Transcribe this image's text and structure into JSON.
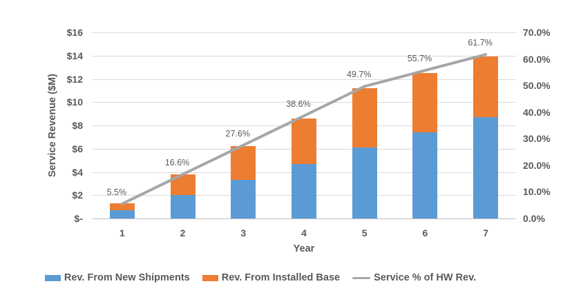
{
  "chart_data": {
    "type": "bar",
    "subtype": "stacked-bar-with-line",
    "title": "",
    "xlabel": "Year",
    "ylabel": "Service Revenue ($M)",
    "categories": [
      "1",
      "2",
      "3",
      "4",
      "5",
      "6",
      "7"
    ],
    "series": [
      {
        "name": "Rev. From New Shipments",
        "kind": "bar",
        "axis": "left",
        "color": "#5B9BD5",
        "values": [
          0.7,
          2.0,
          3.3,
          4.7,
          6.1,
          7.4,
          8.7
        ]
      },
      {
        "name": "Rev. From Installed Base",
        "kind": "bar",
        "axis": "left",
        "color": "#ED7D31",
        "values": [
          0.6,
          1.8,
          2.9,
          3.9,
          5.1,
          5.1,
          5.2
        ]
      },
      {
        "name": "Service % of HW Rev.",
        "kind": "line",
        "axis": "right",
        "color": "#A6A6A6",
        "values": [
          5.5,
          16.6,
          27.6,
          38.6,
          49.7,
          55.7,
          61.7
        ],
        "point_labels": [
          "5.5%",
          "16.6%",
          "27.6%",
          "38.6%",
          "49.7%",
          "55.7%",
          "61.7%"
        ]
      }
    ],
    "left_axis": {
      "min": 0,
      "max": 16,
      "step": 2,
      "tick_labels": [
        "$-",
        "$2",
        "$4",
        "$6",
        "$8",
        "$10",
        "$12",
        "$14",
        "$16"
      ]
    },
    "right_axis": {
      "min": 0,
      "max": 70,
      "step": 10,
      "tick_labels": [
        "0.0%",
        "10.0%",
        "20.0%",
        "30.0%",
        "40.0%",
        "50.0%",
        "60.0%",
        "70.0%"
      ]
    },
    "grid": true,
    "legend_position": "bottom",
    "colors": {
      "grid": "#D9D9D9",
      "axis_line": "#BFBFBF",
      "text": "#595959",
      "background": "#FFFFFF"
    }
  }
}
